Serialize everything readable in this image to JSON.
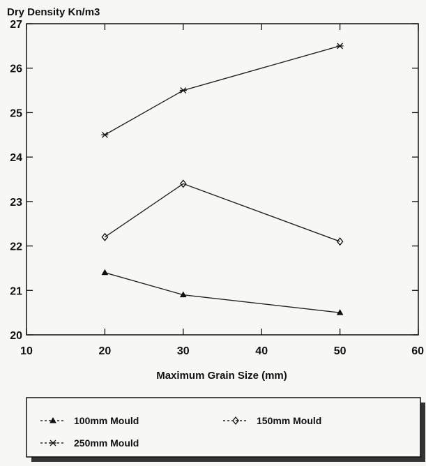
{
  "chart_data": {
    "type": "line",
    "title": "",
    "xlabel": "Maximum Grain Size (mm)",
    "ylabel": "Dry Density Kn/m3",
    "xlim": [
      10,
      60
    ],
    "ylim": [
      20,
      27
    ],
    "x_ticks": [
      10,
      20,
      30,
      40,
      50,
      60
    ],
    "y_ticks": [
      20,
      21,
      22,
      23,
      24,
      25,
      26,
      27
    ],
    "grid": false,
    "legend_position": "bottom",
    "series": [
      {
        "name": "100mm Mould",
        "marker": "triangle",
        "x": [
          20,
          30,
          50
        ],
        "y": [
          21.4,
          20.9,
          20.5
        ]
      },
      {
        "name": "150mm Mould",
        "marker": "diamond",
        "x": [
          20,
          30,
          50
        ],
        "y": [
          22.2,
          23.4,
          22.1
        ]
      },
      {
        "name": "250mm Mould",
        "marker": "star",
        "x": [
          20,
          30,
          50
        ],
        "y": [
          24.5,
          25.5,
          26.5
        ]
      }
    ]
  }
}
